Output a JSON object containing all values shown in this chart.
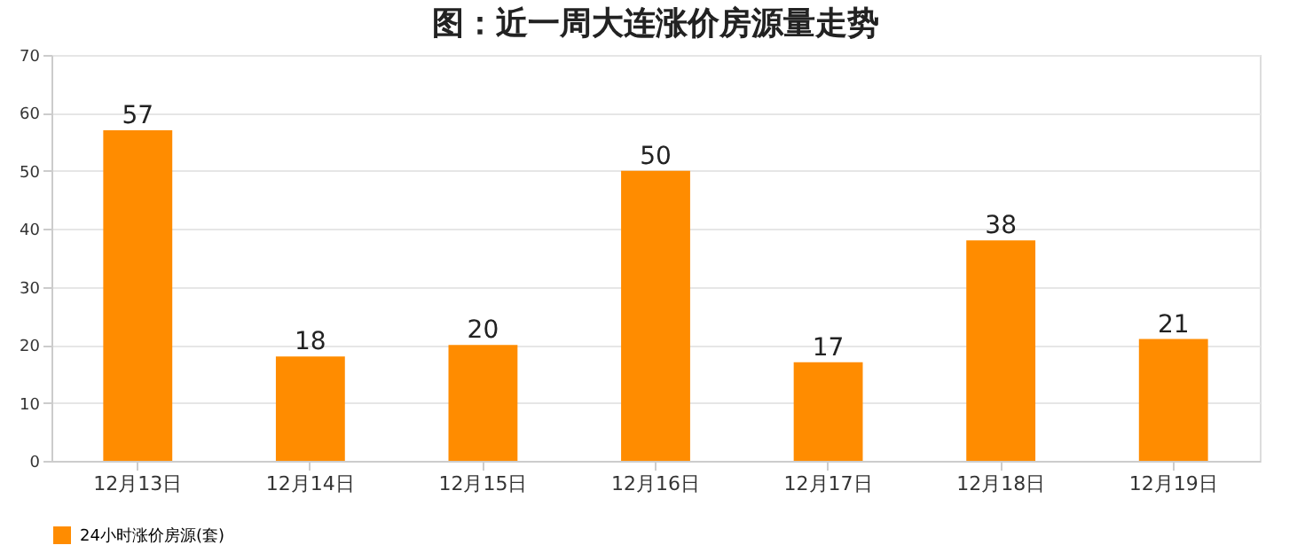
{
  "chart_data": {
    "type": "bar",
    "title": "图：近一周大连涨价房源量走势",
    "categories": [
      "12月13日",
      "12月14日",
      "12月15日",
      "12月16日",
      "12月17日",
      "12月18日",
      "12月19日"
    ],
    "series": [
      {
        "name": "24小时涨价房源(套)",
        "color": "#ff8c00",
        "values": [
          57,
          18,
          20,
          50,
          17,
          38,
          21
        ]
      }
    ],
    "ylim": [
      0,
      70
    ],
    "yticks": [
      0,
      10,
      20,
      30,
      40,
      50,
      60,
      70
    ],
    "grid": "y",
    "legend": "bottom",
    "data_labels": true
  }
}
